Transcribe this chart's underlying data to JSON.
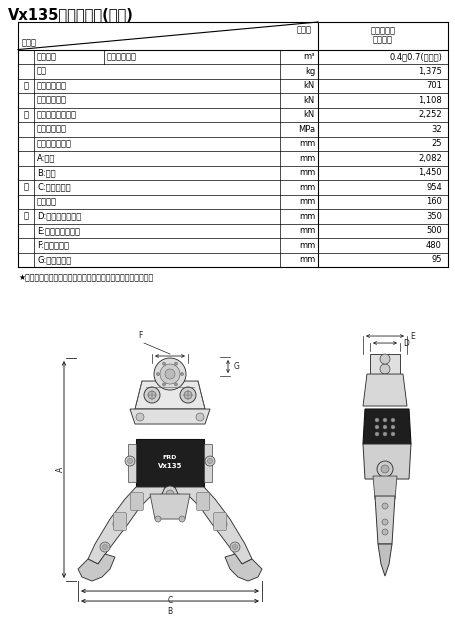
{
  "title": "Vx135フリー旋回(標準)",
  "header_left_top": "標　種",
  "header_left_bot": "項　目",
  "header_right_line1": "フリー旋回",
  "header_right_line2": "（標準）",
  "rows": [
    {
      "category": "",
      "subcategory": "適合台車",
      "sub2": "バケット容量",
      "unit": "m³",
      "value": "0.4～0.7(ロング)"
    },
    {
      "category": "",
      "subcategory": "質量",
      "sub2": "",
      "unit": "kg",
      "value": "1,375"
    },
    {
      "category": "性",
      "subcategory": "先端歯圧砕力",
      "sub2": "",
      "unit": "kN",
      "value": "701"
    },
    {
      "category": "",
      "subcategory": "中央歯圧砕力",
      "sub2": "",
      "unit": "kN",
      "value": "1,108"
    },
    {
      "category": "能",
      "subcategory": "カッタ中央切断力",
      "sub2": "",
      "unit": "kN",
      "value": "2,252"
    },
    {
      "category": "",
      "subcategory": "最大使用圧力",
      "sub2": "",
      "unit": "MPa",
      "value": "32"
    },
    {
      "category": "",
      "subcategory": "ホース接続口径",
      "sub2": "",
      "unit": "mm",
      "value": "25"
    },
    {
      "category": "",
      "subcategory": "A:全長",
      "sub2": "",
      "unit": "mm",
      "value": "2,082"
    },
    {
      "category": "",
      "subcategory": "B:全幅",
      "sub2": "",
      "unit": "mm",
      "value": "1,450"
    },
    {
      "category": "寸",
      "subcategory": "C:最大開口幅",
      "sub2": "",
      "unit": "mm",
      "value": "954"
    },
    {
      "category": "",
      "subcategory": "カッタ長",
      "sub2": "",
      "unit": "mm",
      "value": "160"
    },
    {
      "category": "法",
      "subcategory": "D:ブラケット内幅",
      "sub2": "",
      "unit": "mm",
      "value": "350"
    },
    {
      "category": "",
      "subcategory": "E:ブラケット外幅",
      "sub2": "",
      "unit": "mm",
      "value": "500"
    },
    {
      "category": "",
      "subcategory": "F:ピン間距離",
      "sub2": "",
      "unit": "mm",
      "value": "480"
    },
    {
      "category": "",
      "subcategory": "G:ボス部内径",
      "sub2": "",
      "unit": "mm",
      "value": "95"
    }
  ],
  "footnote": "★　仕様は製品改良のため断りなく変更するときがあります。",
  "bg_color": "#ffffff",
  "text_color": "#000000",
  "line_color": "#000000",
  "table_font_size": 6.0,
  "title_font_size": 10.5
}
